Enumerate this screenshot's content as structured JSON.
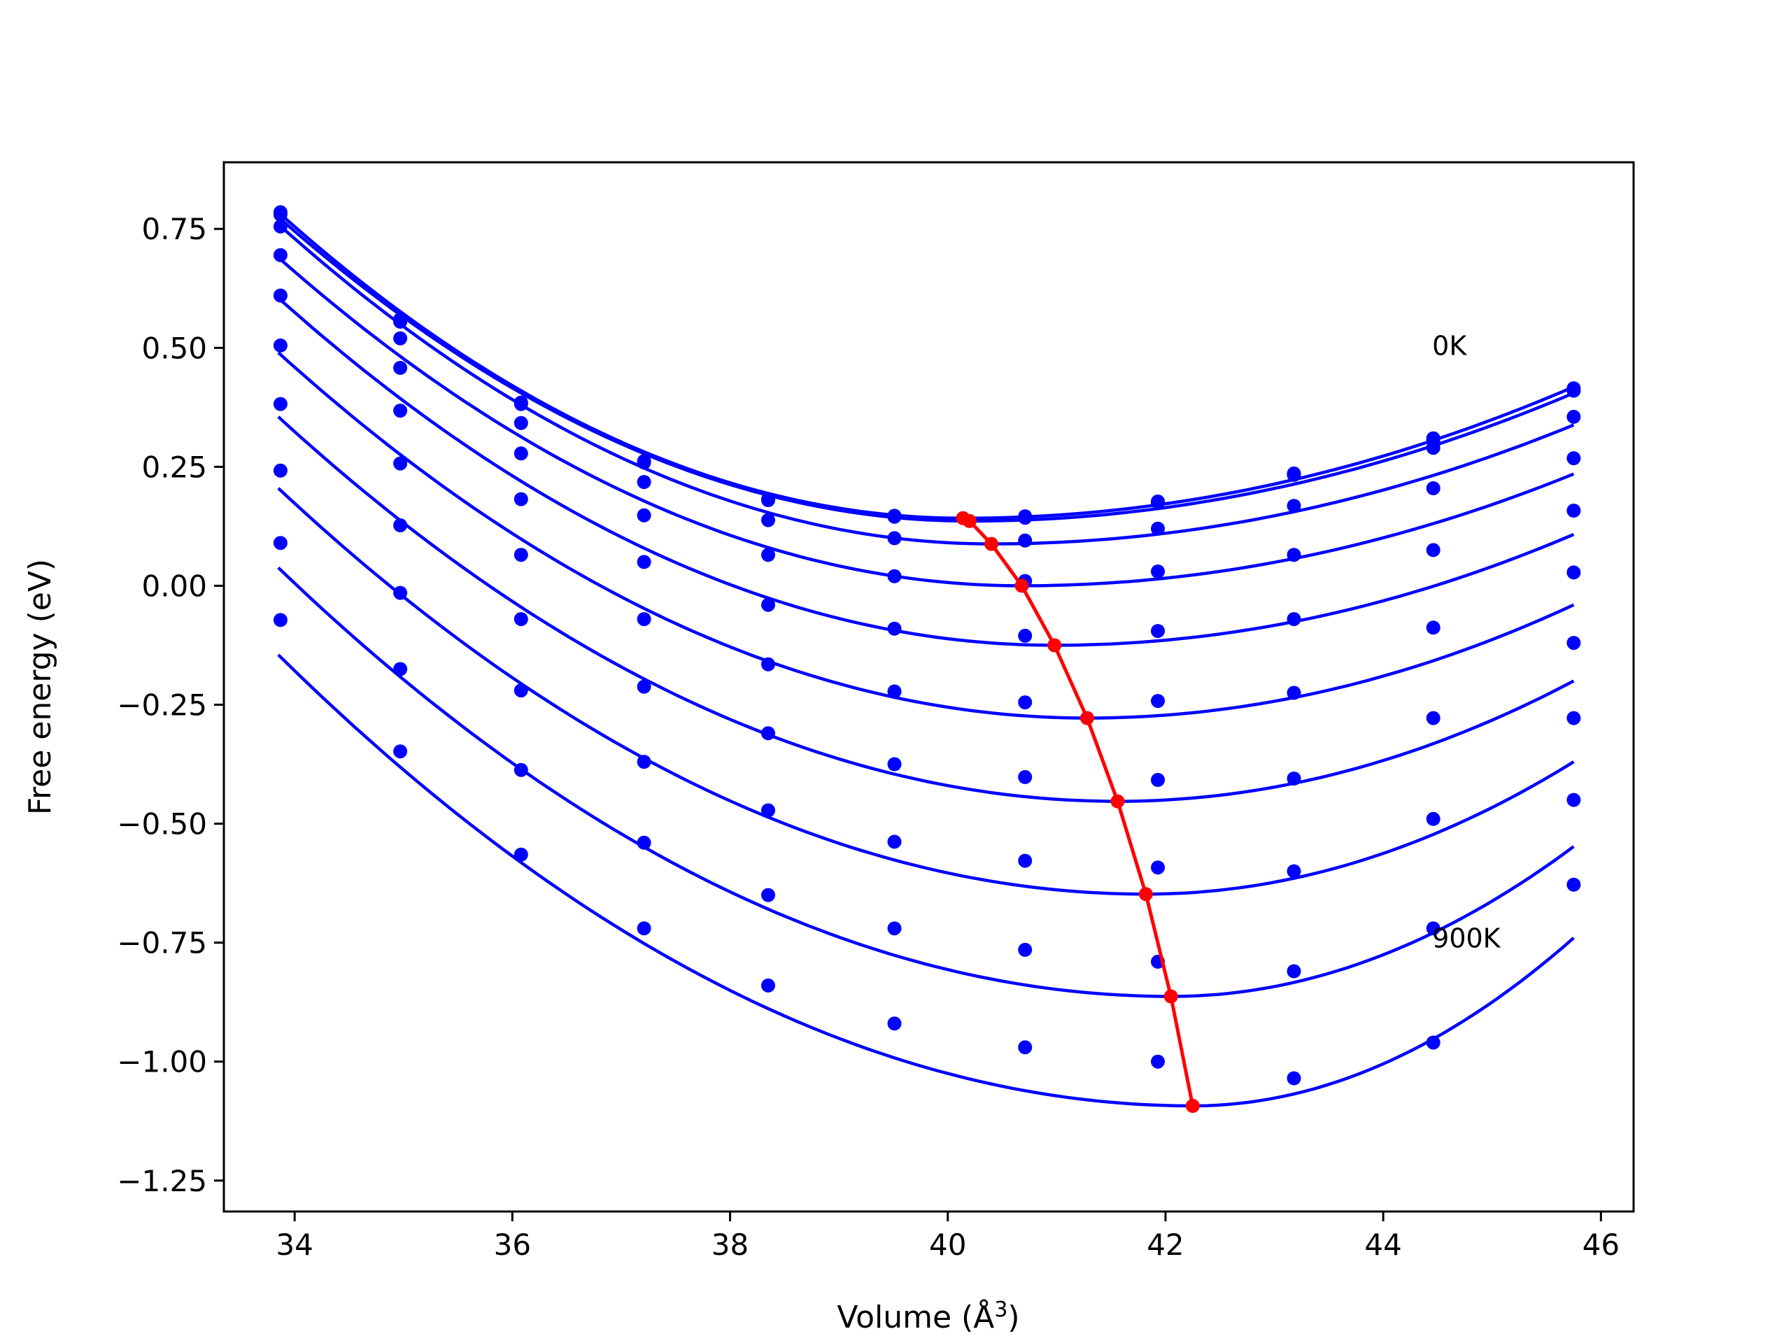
{
  "chart_data": {
    "type": "scatter",
    "xlabel": "Volume (Å",
    "xlabel_sup": "3",
    "xlabel_close": ")",
    "ylabel": "Free energy (eV)",
    "xlim": [
      33.35,
      46.3
    ],
    "ylim": [
      -1.315,
      0.89
    ],
    "xticks": [
      34,
      36,
      38,
      40,
      42,
      44,
      46
    ],
    "xtick_labels": [
      "34",
      "36",
      "38",
      "40",
      "42",
      "44",
      "46"
    ],
    "yticks": [
      0.75,
      0.5,
      0.25,
      0.0,
      -0.25,
      -0.5,
      -0.75,
      -1.0,
      -1.25
    ],
    "ytick_labels": [
      "0.75",
      "0.50",
      "0.25",
      "0.00",
      "−0.25",
      "−0.50",
      "−0.75",
      "−1.00",
      "−1.25"
    ],
    "grid": false,
    "annotations": [
      {
        "text": "0K",
        "x": 44.45,
        "y": 0.485
      },
      {
        "text": "900K",
        "x": 44.45,
        "y": -0.76
      }
    ],
    "x_points": [
      33.87,
      34.97,
      36.08,
      37.21,
      38.35,
      39.51,
      40.71,
      41.93,
      43.18,
      44.46,
      45.75
    ],
    "curve_color": "#0000ff",
    "min_color": "#ff0000",
    "curve_x_range": [
      33.85,
      45.75
    ],
    "series": [
      {
        "y": [
          0.785,
          0.56,
          0.385,
          0.262,
          0.182,
          0.147,
          0.146,
          0.177,
          0.236,
          0.31,
          0.415
        ],
        "fit_min": [
          40.14,
          0.142
        ],
        "fit_start": 0.785,
        "fit_end": 0.418
      },
      {
        "y": [
          0.78,
          0.555,
          0.382,
          0.259,
          0.18,
          0.145,
          0.143,
          0.175,
          0.233,
          0.307,
          0.41
        ],
        "fit_min": [
          40.2,
          0.136
        ],
        "fit_start": 0.775,
        "fit_end": 0.405
      },
      {
        "y": [
          0.755,
          0.52,
          0.342,
          0.218,
          0.138,
          0.1,
          0.095,
          0.12,
          0.168,
          0.29,
          0.355
        ],
        "fit_min": [
          40.4,
          0.088
        ],
        "fit_start": 0.76,
        "fit_end": 0.338
      },
      {
        "y": [
          0.695,
          0.458,
          0.278,
          0.148,
          0.065,
          0.02,
          0.01,
          0.03,
          0.065,
          0.205,
          0.268
        ],
        "fit_min": [
          40.68,
          0.0
        ],
        "fit_start": 0.69,
        "fit_end": 0.235
      },
      {
        "y": [
          0.61,
          0.368,
          0.182,
          0.05,
          -0.04,
          -0.09,
          -0.105,
          -0.095,
          -0.07,
          0.075,
          0.158
        ],
        "fit_min": [
          40.98,
          -0.125
        ],
        "fit_start": 0.605,
        "fit_end": 0.108
      },
      {
        "y": [
          0.505,
          0.257,
          0.065,
          -0.07,
          -0.165,
          -0.222,
          -0.245,
          -0.242,
          -0.225,
          -0.088,
          0.028
        ],
        "fit_min": [
          41.28,
          -0.278
        ],
        "fit_start": 0.49,
        "fit_end": -0.04
      },
      {
        "y": [
          0.382,
          0.127,
          -0.07,
          -0.212,
          -0.31,
          -0.375,
          -0.402,
          -0.408,
          -0.405,
          -0.278,
          -0.12
        ],
        "fit_min": [
          41.56,
          -0.453
        ],
        "fit_start": 0.355,
        "fit_end": -0.2
      },
      {
        "y": [
          0.242,
          -0.015,
          -0.22,
          -0.37,
          -0.472,
          -0.538,
          -0.578,
          -0.592,
          -0.6,
          -0.49,
          -0.278
        ],
        "fit_min": [
          41.82,
          -0.648
        ],
        "fit_start": 0.205,
        "fit_end": -0.37
      },
      {
        "y": [
          0.09,
          -0.175,
          -0.387,
          -0.54,
          -0.65,
          -0.72,
          -0.765,
          -0.79,
          -0.81,
          -0.72,
          -0.45
        ],
        "fit_min": [
          42.05,
          -0.863
        ],
        "fit_start": 0.038,
        "fit_end": -0.548
      },
      {
        "y": [
          -0.072,
          -0.348,
          -0.565,
          -0.72,
          -0.84,
          -0.92,
          -0.97,
          -1.0,
          -1.035,
          -0.96,
          -0.628
        ],
        "fit_min": [
          42.25,
          -1.093
        ],
        "fit_start": -0.145,
        "fit_end": -0.74
      }
    ],
    "equilibrium_line": {
      "x": [
        40.14,
        40.2,
        40.4,
        40.68,
        40.98,
        41.28,
        41.56,
        41.82,
        42.05,
        42.25
      ],
      "y": [
        0.142,
        0.136,
        0.088,
        0.0,
        -0.125,
        -0.278,
        -0.453,
        -0.648,
        -0.863,
        -1.093
      ]
    }
  }
}
